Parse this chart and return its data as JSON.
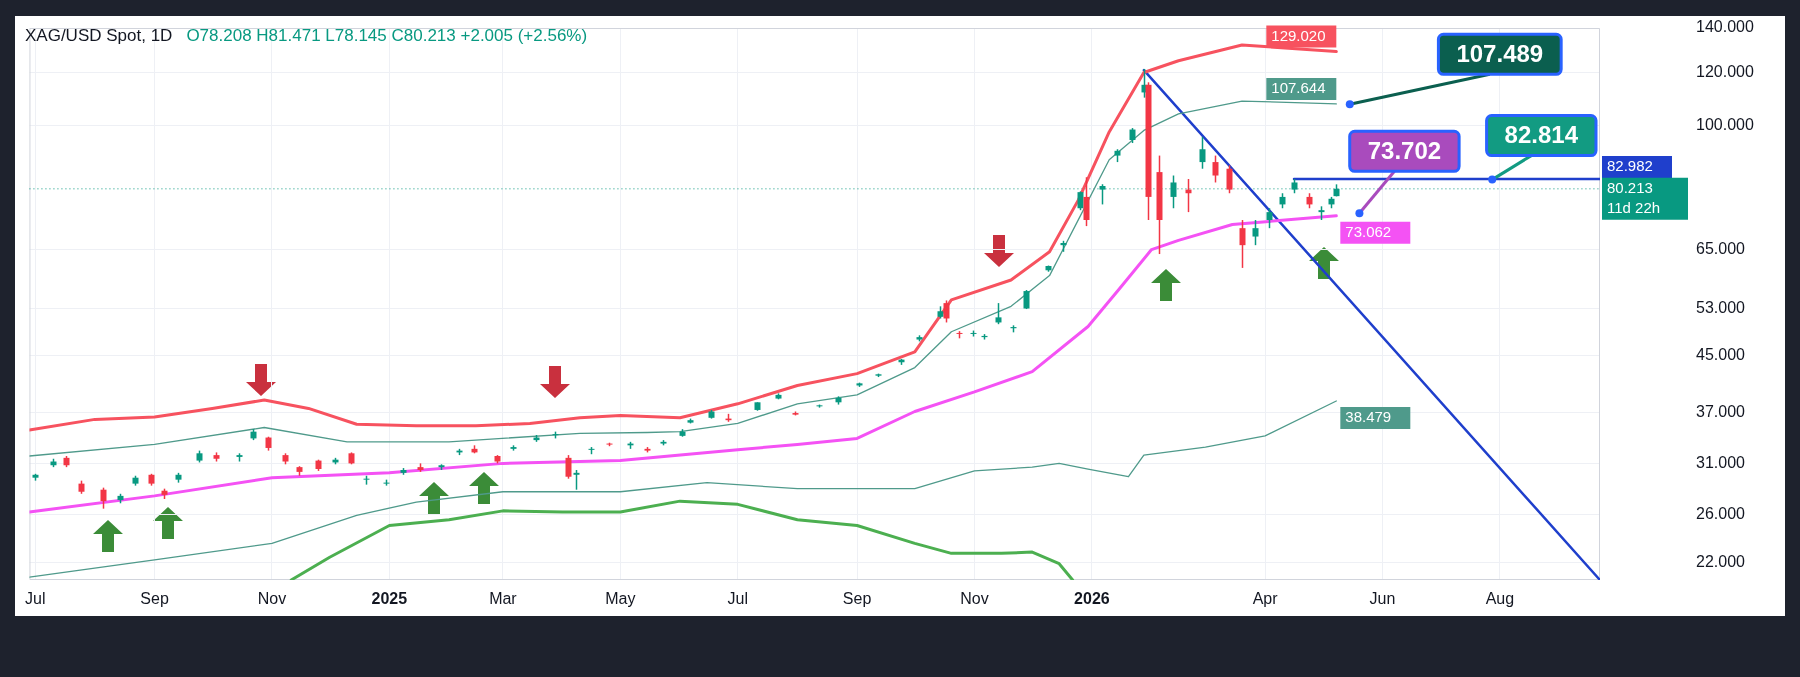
{
  "chart_data": {
    "type": "candlestick",
    "title": "XAG/USD Spot, 1D",
    "subtitle": "O78.208 H81.471 L78.145 C80.213 +2.005 (+2.56%)",
    "log": true,
    "grid": true,
    "xlim": [
      "2024-06-28",
      "2026-09-22"
    ],
    "xticks": [
      {
        "value": "2024-07-01",
        "label": "Jul"
      },
      {
        "value": "2024-09-01",
        "label": "Sep"
      },
      {
        "value": "2024-11-01",
        "label": "Nov"
      },
      {
        "value": "2025-01-01",
        "label": "2025"
      },
      {
        "value": "2025-03-01",
        "label": "Mar"
      },
      {
        "value": "2025-05-01",
        "label": "May"
      },
      {
        "value": "2025-07-01",
        "label": "Jul"
      },
      {
        "value": "2025-09-01",
        "label": "Sep"
      },
      {
        "value": "2025-11-01",
        "label": "Nov"
      },
      {
        "value": "2026-01-01",
        "label": "2026"
      },
      {
        "value": "2026-04-01",
        "label": "Apr"
      },
      {
        "value": "2026-06-01",
        "label": "Jun"
      },
      {
        "value": "2026-08-01",
        "label": "Aug"
      }
    ],
    "ylim": [
      20.7,
      140
    ],
    "yticks": [
      {
        "value": 22,
        "label": "22.000"
      },
      {
        "value": 26,
        "label": "26.000"
      },
      {
        "value": 31,
        "label": "31.000"
      },
      {
        "value": 37,
        "label": "37.000"
      },
      {
        "value": 45,
        "label": "45.000"
      },
      {
        "value": 53,
        "label": "53.000"
      },
      {
        "value": 65,
        "label": "65.000"
      },
      {
        "value": 100,
        "label": "100.000"
      },
      {
        "value": 120,
        "label": "120.000"
      },
      {
        "value": 140,
        "label": "140.000"
      }
    ],
    "x": [
      "2024-07-01",
      "2024-07-10",
      "2024-07-17",
      "2024-07-25",
      "2024-08-05",
      "2024-08-14",
      "2024-08-22",
      "2024-08-30",
      "2024-09-06",
      "2024-09-13",
      "2024-09-24",
      "2024-10-03",
      "2024-10-15",
      "2024-10-22",
      "2024-10-30",
      "2024-11-08",
      "2024-11-15",
      "2024-11-25",
      "2024-12-04",
      "2024-12-12",
      "2024-12-20",
      "2024-12-30",
      "2025-01-08",
      "2025-01-17",
      "2025-01-28",
      "2025-02-06",
      "2025-02-14",
      "2025-02-26",
      "2025-03-06",
      "2025-03-18",
      "2025-03-28",
      "2025-04-04",
      "2025-04-08",
      "2025-04-16",
      "2025-04-25",
      "2025-05-06",
      "2025-05-15",
      "2025-05-23",
      "2025-06-02",
      "2025-06-06",
      "2025-06-17",
      "2025-06-26",
      "2025-07-11",
      "2025-07-22",
      "2025-07-31",
      "2025-08-12",
      "2025-08-22",
      "2025-09-02",
      "2025-09-12",
      "2025-09-24",
      "2025-10-03",
      "2025-10-14",
      "2025-10-17",
      "2025-10-24",
      "2025-10-31",
      "2025-11-06",
      "2025-11-13",
      "2025-11-21",
      "2025-11-28",
      "2025-12-09",
      "2025-12-17",
      "2025-12-26",
      "2025-12-29",
      "2026-01-06",
      "2026-01-14",
      "2026-01-22",
      "2026-01-28",
      "2026-01-30",
      "2026-02-05",
      "2026-02-12",
      "2026-02-20",
      "2026-02-27",
      "2026-03-06",
      "2026-03-13",
      "2026-03-20",
      "2026-03-27",
      "2026-04-03",
      "2026-04-10",
      "2026-04-16",
      "2026-04-24",
      "2026-04-30",
      "2026-05-05",
      "2026-05-08"
    ],
    "ohlc": [
      [
        29.5,
        29.9,
        29.2,
        29.8
      ],
      [
        30.8,
        31.5,
        30.6,
        31.2
      ],
      [
        31.6,
        31.8,
        30.6,
        30.8
      ],
      [
        28.9,
        29.2,
        27.9,
        28.1
      ],
      [
        28.3,
        28.5,
        26.5,
        27.2
      ],
      [
        27.3,
        27.9,
        27.0,
        27.7
      ],
      [
        28.9,
        29.7,
        28.7,
        29.5
      ],
      [
        29.8,
        29.9,
        28.7,
        28.9
      ],
      [
        28.2,
        28.4,
        27.4,
        27.8
      ],
      [
        29.3,
        30.0,
        29.0,
        29.8
      ],
      [
        31.3,
        32.4,
        31.1,
        32.1
      ],
      [
        31.9,
        32.2,
        31.2,
        31.5
      ],
      [
        31.7,
        32.1,
        31.2,
        31.9
      ],
      [
        33.8,
        34.9,
        33.6,
        34.6
      ],
      [
        33.9,
        34.0,
        32.4,
        32.7
      ],
      [
        31.9,
        32.1,
        30.9,
        31.2
      ],
      [
        30.6,
        30.7,
        29.7,
        30.1
      ],
      [
        31.3,
        31.4,
        30.2,
        30.4
      ],
      [
        31.1,
        31.6,
        30.9,
        31.4
      ],
      [
        32.1,
        32.2,
        30.9,
        31.0
      ],
      [
        29.3,
        29.7,
        28.8,
        29.4
      ],
      [
        28.9,
        29.3,
        28.7,
        29.0
      ],
      [
        30.0,
        30.5,
        29.8,
        30.3
      ],
      [
        30.6,
        31.0,
        30.1,
        30.3
      ],
      [
        30.6,
        30.9,
        30.3,
        30.8
      ],
      [
        32.2,
        32.6,
        31.9,
        32.4
      ],
      [
        32.6,
        33.0,
        32.1,
        32.2
      ],
      [
        31.8,
        31.9,
        31.0,
        31.2
      ],
      [
        32.6,
        33.0,
        32.4,
        32.8
      ],
      [
        33.6,
        34.2,
        33.4,
        33.9
      ],
      [
        34.2,
        34.6,
        33.8,
        34.3
      ],
      [
        31.6,
        31.9,
        29.4,
        29.6
      ],
      [
        29.8,
        30.3,
        28.3,
        30.0
      ],
      [
        32.5,
        32.8,
        32.0,
        32.6
      ],
      [
        33.2,
        33.3,
        32.9,
        33.1
      ],
      [
        33.0,
        33.4,
        32.6,
        33.2
      ],
      [
        32.6,
        32.8,
        32.2,
        32.4
      ],
      [
        33.2,
        33.6,
        33.0,
        33.4
      ],
      [
        34.1,
        34.9,
        34.0,
        34.6
      ],
      [
        35.7,
        36.2,
        35.6,
        36.0
      ],
      [
        36.3,
        37.3,
        36.2,
        37.1
      ],
      [
        36.2,
        36.8,
        35.8,
        36.0
      ],
      [
        37.3,
        38.3,
        37.2,
        38.3
      ],
      [
        38.8,
        39.5,
        38.7,
        39.3
      ],
      [
        36.9,
        37.1,
        36.6,
        36.7
      ],
      [
        37.8,
        38.0,
        37.6,
        37.9
      ],
      [
        38.3,
        39.1,
        38.0,
        38.9
      ],
      [
        40.6,
        41.0,
        40.4,
        40.9
      ],
      [
        42.0,
        42.3,
        41.8,
        42.2
      ],
      [
        44.0,
        44.5,
        43.6,
        44.4
      ],
      [
        47.6,
        48.3,
        47.3,
        48.0
      ],
      [
        51.5,
        53.4,
        51.2,
        52.5
      ],
      [
        54.0,
        54.5,
        50.5,
        51.2
      ],
      [
        48.7,
        49.0,
        47.8,
        48.6
      ],
      [
        48.6,
        49.1,
        48.1,
        48.7
      ],
      [
        48.0,
        48.5,
        47.6,
        48.2
      ],
      [
        50.5,
        54.0,
        50.2,
        51.4
      ],
      [
        49.5,
        50.0,
        48.8,
        49.7
      ],
      [
        53.0,
        56.5,
        52.9,
        56.3
      ],
      [
        60.5,
        61.5,
        60.2,
        61.4
      ],
      [
        66.0,
        67.0,
        64.5,
        66.5
      ],
      [
        75.0,
        79.5,
        74.5,
        79.3
      ],
      [
        78.0,
        83.5,
        70.5,
        72.0
      ],
      [
        80.0,
        81.5,
        76.0,
        81.0
      ],
      [
        90.0,
        92.0,
        88.0,
        91.5
      ],
      [
        95.0,
        99.0,
        94.0,
        98.5
      ],
      [
        112.0,
        121.5,
        110.0,
        115.0
      ],
      [
        115.0,
        116.0,
        72.0,
        78.0
      ],
      [
        85.0,
        90.0,
        64.0,
        72.0
      ],
      [
        78.0,
        84.0,
        75.0,
        82.0
      ],
      [
        80.0,
        83.0,
        74.0,
        79.0
      ],
      [
        88.0,
        96.0,
        86.0,
        92.0
      ],
      [
        88.0,
        90.0,
        82.0,
        84.0
      ],
      [
        86.0,
        87.0,
        79.0,
        80.0
      ],
      [
        70.0,
        72.0,
        61.0,
        66.0
      ],
      [
        68.0,
        72.0,
        66.0,
        70.0
      ],
      [
        72.0,
        75.0,
        70.0,
        74.0
      ],
      [
        76.0,
        79.0,
        75.0,
        78.0
      ],
      [
        80.0,
        83.0,
        79.0,
        82.0
      ],
      [
        78.0,
        79.0,
        75.0,
        76.0
      ],
      [
        74.0,
        75.5,
        72.0,
        74.5
      ],
      [
        76.0,
        78.0,
        75.0,
        77.5
      ],
      [
        78.208,
        81.471,
        78.145,
        80.213
      ]
    ],
    "series": [
      {
        "type": "line",
        "color": "#f7525f",
        "x": [
          "2024-06-28",
          "2024-08-01",
          "2024-09-01",
          "2024-10-01",
          "2024-10-28",
          "2024-11-20",
          "2024-12-15",
          "2025-01-15",
          "2025-02-15",
          "2025-03-15",
          "2025-04-10",
          "2025-05-01",
          "2025-06-01",
          "2025-07-01",
          "2025-08-01",
          "2025-09-01",
          "2025-10-01",
          "2025-10-20",
          "2025-11-20",
          "2025-12-10",
          "2025-12-25",
          "2026-01-10",
          "2026-01-28",
          "2026-02-15",
          "2026-03-20",
          "2026-05-08"
        ],
        "values": [
          34.8,
          36.1,
          36.4,
          37.5,
          38.6,
          37.5,
          35.5,
          35.3,
          35.3,
          35.6,
          36.3,
          36.6,
          36.3,
          38.1,
          40.6,
          42.3,
          45.6,
          54.6,
          58.5,
          64.5,
          77.2,
          97.7,
          120,
          125,
          132,
          129.02
        ],
        "value_labels": [
          null,
          null,
          null,
          null,
          null,
          null,
          null,
          null,
          null,
          null,
          null,
          null,
          null,
          null,
          null,
          null,
          null,
          null,
          null,
          null,
          null,
          null,
          null,
          null,
          null,
          "129.020"
        ]
      },
      {
        "type": "line",
        "color": "#4f9a8b",
        "x": [
          "2024-06-28",
          "2024-09-01",
          "2024-10-28",
          "2024-12-10",
          "2025-02-01",
          "2025-04-10",
          "2025-05-15",
          "2025-06-01",
          "2025-07-01",
          "2025-08-01",
          "2025-09-01",
          "2025-10-01",
          "2025-10-20",
          "2025-11-20",
          "2025-12-10",
          "2025-12-25",
          "2026-01-10",
          "2026-01-28",
          "2026-02-15",
          "2026-03-20",
          "2026-05-08"
        ],
        "values": [
          31.8,
          33.1,
          35.1,
          33.4,
          33.4,
          34.4,
          34.5,
          34.6,
          35.6,
          38.1,
          39.3,
          43.2,
          48.9,
          53.4,
          59.4,
          72.1,
          88.7,
          98.2,
          104,
          108.7,
          107.644
        ],
        "value_labels": [
          null,
          null,
          null,
          null,
          null,
          null,
          null,
          null,
          null,
          null,
          null,
          null,
          null,
          null,
          null,
          null,
          null,
          null,
          null,
          null,
          "107.644"
        ]
      },
      {
        "type": "line",
        "color": "#f452f4",
        "x": [
          "2024-06-28",
          "2024-09-01",
          "2024-11-01",
          "2025-01-01",
          "2025-03-01",
          "2025-05-01",
          "2025-07-01",
          "2025-08-01",
          "2025-09-01",
          "2025-10-01",
          "2025-11-01",
          "2025-12-01",
          "2025-12-30",
          "2026-01-15",
          "2026-02-01",
          "2026-02-15",
          "2026-03-15",
          "2026-05-08"
        ],
        "values": [
          26.2,
          27.7,
          29.5,
          30.0,
          31.0,
          31.3,
          32.5,
          33.1,
          33.8,
          37.1,
          39.7,
          42.6,
          49.8,
          56.6,
          65,
          67.1,
          70.9,
          73.062
        ],
        "value_labels": [
          null,
          null,
          null,
          null,
          null,
          null,
          null,
          null,
          null,
          null,
          null,
          null,
          null,
          null,
          null,
          null,
          null,
          "73.062"
        ]
      },
      {
        "type": "line",
        "color": "#4f9a8b",
        "x": [
          "2024-06-28",
          "2024-09-01",
          "2024-11-01",
          "2024-12-15",
          "2025-01-15",
          "2025-03-01",
          "2025-05-01",
          "2025-06-15",
          "2025-08-01",
          "2025-10-01",
          "2025-11-01",
          "2025-12-01",
          "2025-12-15",
          "2025-12-30",
          "2026-01-20",
          "2026-01-28",
          "2026-03-01",
          "2026-04-01",
          "2026-05-08"
        ],
        "values": [
          20.9,
          22.2,
          23.5,
          25.9,
          27.1,
          28.1,
          28.1,
          29.0,
          28.4,
          28.4,
          30.2,
          30.6,
          31,
          30.4,
          29.6,
          31.9,
          32.8,
          34.1,
          38.479
        ],
        "value_labels": [
          null,
          null,
          null,
          null,
          null,
          null,
          null,
          null,
          null,
          null,
          null,
          null,
          null,
          null,
          null,
          null,
          null,
          null,
          "38.479"
        ]
      },
      {
        "type": "line",
        "color": "#4caf50",
        "x": [
          "2024-11-11",
          "2024-12-01",
          "2025-01-01",
          "2025-02-01",
          "2025-03-01",
          "2025-04-01",
          "2025-05-01",
          "2025-06-01",
          "2025-07-01",
          "2025-08-01",
          "2025-09-01",
          "2025-10-01",
          "2025-10-20",
          "2025-11-15",
          "2025-12-01",
          "2025-12-15",
          "2025-12-22"
        ],
        "values": [
          20.7,
          22.4,
          25.0,
          25.5,
          26.3,
          26.2,
          26.2,
          27.2,
          26.9,
          25.5,
          25.0,
          23.5,
          22.7,
          22.7,
          22.8,
          21.9,
          20.7
        ]
      },
      {
        "type": "line",
        "color": "#1f3fcc",
        "x": [
          "2026-01-28",
          "2026-09-22"
        ],
        "values": [
          121,
          20.7
        ]
      },
      {
        "type": "line",
        "color": "#1f3fcc",
        "x": [
          "2026-04-16",
          "2026-09-22"
        ],
        "values": [
          82.982,
          82.982
        ],
        "value_labels": [
          null,
          "82.982"
        ]
      }
    ],
    "ref_lines": [
      {
        "axis": "y",
        "value": 80.213,
        "label": "80.213\n11d 22h",
        "color": "#089981",
        "line_style": "dotted"
      }
    ],
    "annotations": [
      {
        "text": "107.489",
        "x": "2026-05-15",
        "y": 107.489
      },
      {
        "text": "82.814",
        "x": "2026-07-28",
        "y": 82.814
      },
      {
        "text": "73.702",
        "x": "2026-05-20",
        "y": 73.702
      }
    ]
  }
}
